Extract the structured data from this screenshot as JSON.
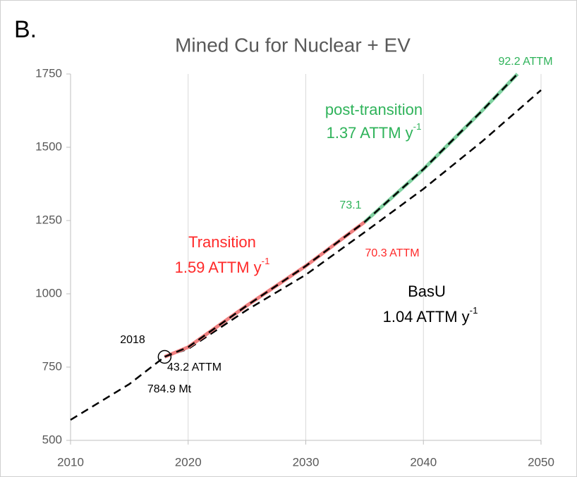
{
  "chart_data": {
    "type": "line",
    "panel": "B.",
    "title": "Mined Cu for Nuclear + EV",
    "xlim": [
      2010,
      2050
    ],
    "xticks": [
      2010,
      2020,
      2030,
      2040,
      2050
    ],
    "ylim": [
      500,
      1750
    ],
    "yticks": [
      500,
      750,
      1000,
      1250,
      1500,
      1750
    ],
    "grid": "x",
    "series": [
      {
        "name": "BasU",
        "color": "#000000",
        "style": "dashed",
        "x": [
          2010,
          2015,
          2018,
          2020,
          2025,
          2030,
          2035,
          2040,
          2045,
          2050
        ],
        "values": [
          570,
          692,
          785,
          812,
          945,
          1065,
          1210,
          1358,
          1520,
          1695
        ]
      },
      {
        "name": "Transition",
        "color": "#f08080",
        "style": "solid-dashed",
        "x": [
          2018,
          2020,
          2025,
          2030,
          2035
        ],
        "values": [
          785,
          818,
          960,
          1095,
          1245
        ]
      },
      {
        "name": "post-transition",
        "color": "#7fd1a0",
        "style": "solid-dashed",
        "x": [
          2035,
          2040,
          2045,
          2048
        ],
        "values": [
          1245,
          1425,
          1625,
          1750
        ]
      }
    ],
    "marker": {
      "x": 2018,
      "y": 784.9
    },
    "annotations": [
      {
        "text": "92.2 ATTM",
        "color": "#2fb35a"
      },
      {
        "text": "post-transition",
        "color": "#2fb35a"
      },
      {
        "text": "1.37 ATTM y",
        "sup": "-1",
        "color": "#2fb35a"
      },
      {
        "text": "73.1",
        "color": "#2fb35a"
      },
      {
        "text": "Transition",
        "color": "#ff2a2a"
      },
      {
        "text": "1.59 ATTM y",
        "sup": "-1",
        "color": "#ff2a2a"
      },
      {
        "text": "70.3 ATTM",
        "color": "#ff2a2a"
      },
      {
        "text": "BasU",
        "color": "#000000"
      },
      {
        "text": "1.04 ATTM y",
        "sup": "-1",
        "color": "#000000"
      },
      {
        "text": "2018",
        "color": "#000000"
      },
      {
        "text": "43.2 ATTM",
        "color": "#000000"
      },
      {
        "text": "784.9 Mt",
        "color": "#000000"
      }
    ]
  }
}
